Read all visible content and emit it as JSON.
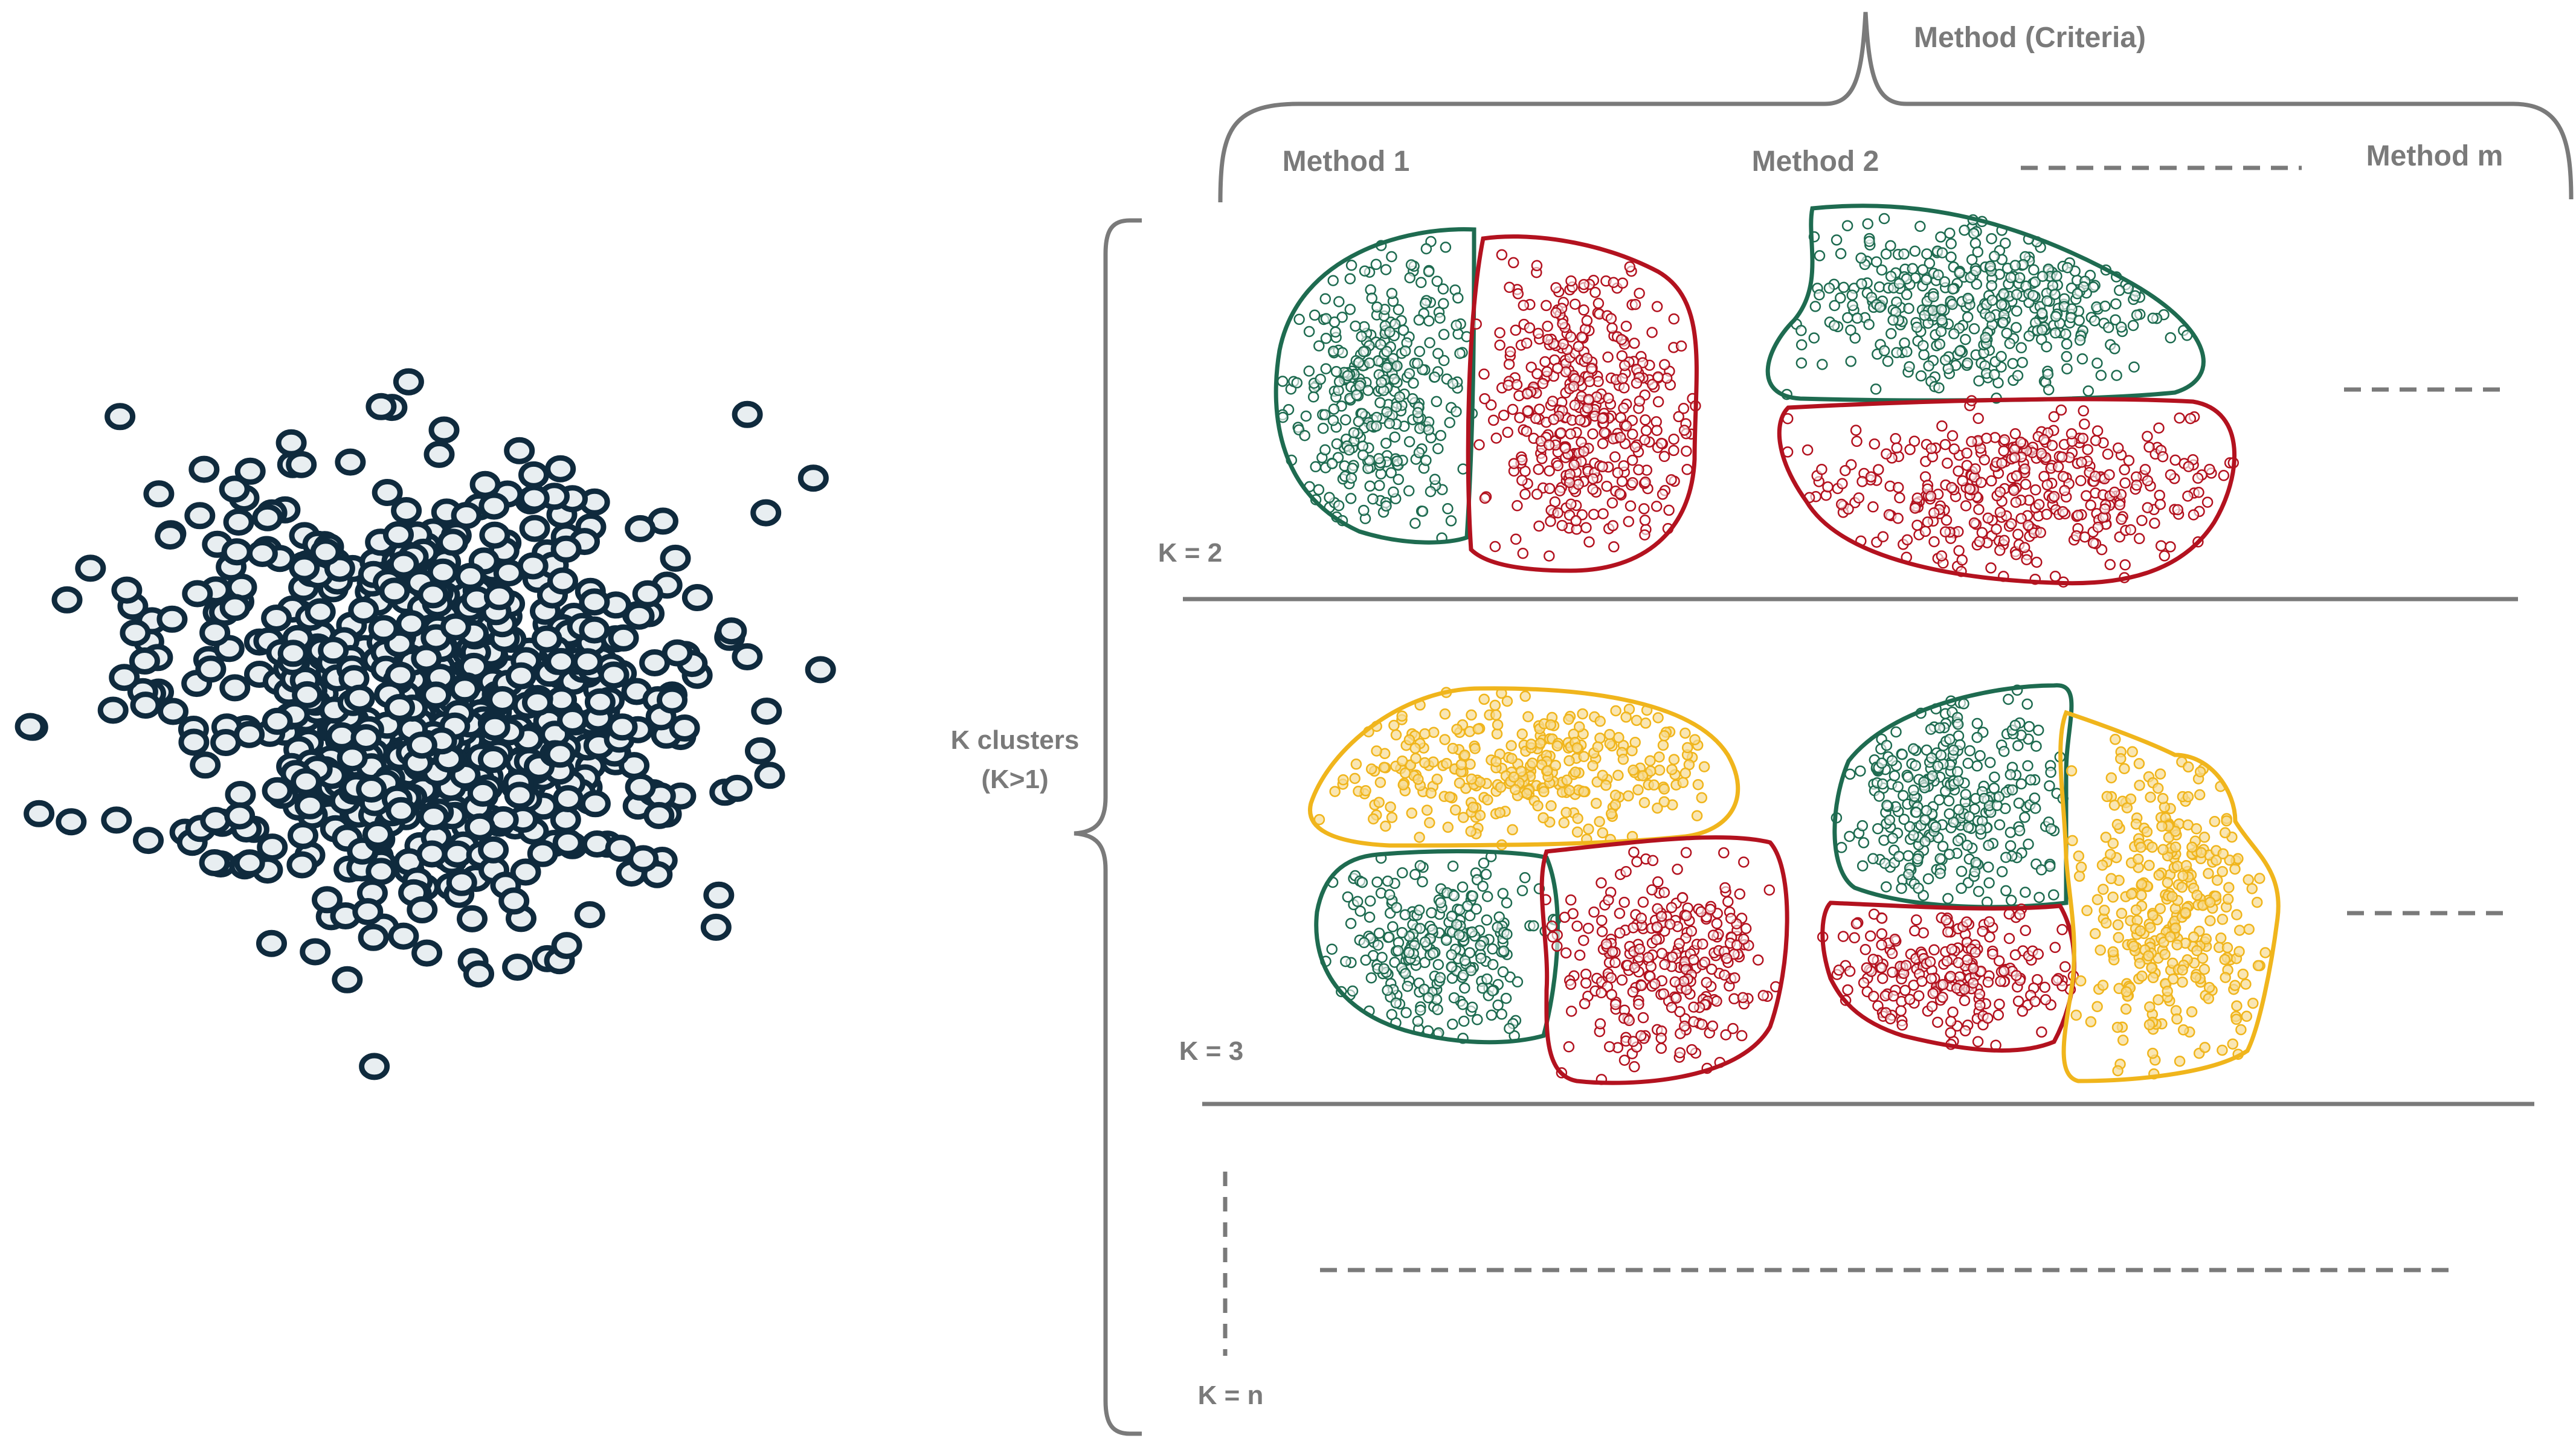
{
  "header": {
    "group_label": "Method (Criteria)"
  },
  "methods": [
    {
      "label": "Method 1"
    },
    {
      "label": "Method 2"
    },
    {
      "label": "Method m"
    }
  ],
  "rows": [
    {
      "label": "K = 2"
    },
    {
      "label": "K = 3"
    },
    {
      "label": "K = n"
    }
  ],
  "axis": {
    "label_line1": "K clusters",
    "label_line2": "(K>1)"
  },
  "colors": {
    "raw_points": "#0f2a3d",
    "raw_fill": "#e8eef1",
    "green": "#1e6b50",
    "red": "#b3121f",
    "yellow": "#f0b51c",
    "yellow_fill": "#f6dc93",
    "gray": "#7a7a7a"
  }
}
